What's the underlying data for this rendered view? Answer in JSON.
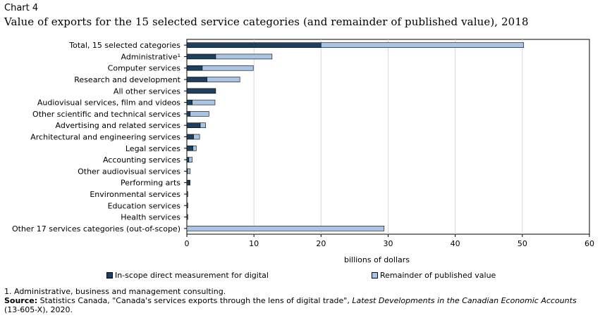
{
  "header": {
    "chart_label": "Chart 4",
    "title": "Value of exports for the 15 selected service categories (and remainder of published value), 2018"
  },
  "colors": {
    "in_scope": "#1e3f5f",
    "remainder": "#a9c4e4",
    "grid": "#d8d8d8",
    "axis": "#000000"
  },
  "chart_data": {
    "type": "bar",
    "orientation": "horizontal",
    "stacked": true,
    "categories": [
      "Total, 15 selected categories",
      "Administrative¹",
      "Computer services",
      "Research and development",
      "All other services",
      "Audiovisual services, film and videos",
      "Other scientific and technical services",
      "Advertising and related services",
      "Architectural and engineering services",
      "Legal services",
      "Accounting services",
      "Other audiovisual services",
      "Performing arts",
      "Environmental services",
      "Education services",
      "Health services",
      "Other 17 services categories (out-of-scope)"
    ],
    "series": [
      {
        "name": "In-scope direct measurement for digital",
        "values": [
          20.0,
          4.3,
          2.3,
          3.0,
          4.3,
          0.8,
          0.5,
          2.0,
          1.0,
          0.9,
          0.3,
          0.1,
          0.4,
          0.05,
          0.05,
          0.05,
          0.0
        ]
      },
      {
        "name": "Remainder of published value",
        "values": [
          30.2,
          8.4,
          7.6,
          4.9,
          0.0,
          3.4,
          2.8,
          0.8,
          0.9,
          0.5,
          0.5,
          0.4,
          0.1,
          0.1,
          0.1,
          0.05,
          29.4
        ]
      }
    ],
    "xlabel": "billions of dollars",
    "xlim": [
      0,
      60
    ],
    "xticks": [
      "0",
      "10",
      "20",
      "30",
      "40",
      "50",
      "60"
    ],
    "grid": true,
    "legend": "bottom"
  },
  "footnote": {
    "note": "1. Administrative, business and management consulting.",
    "source_label": "Source:",
    "source_text": " Statistics Canada, \"Canada's services exports through the lens of digital trade\", ",
    "publication": "Latest Developments in the Canadian Economic Accounts",
    "catalogue": "(13-605-X), 2020."
  }
}
